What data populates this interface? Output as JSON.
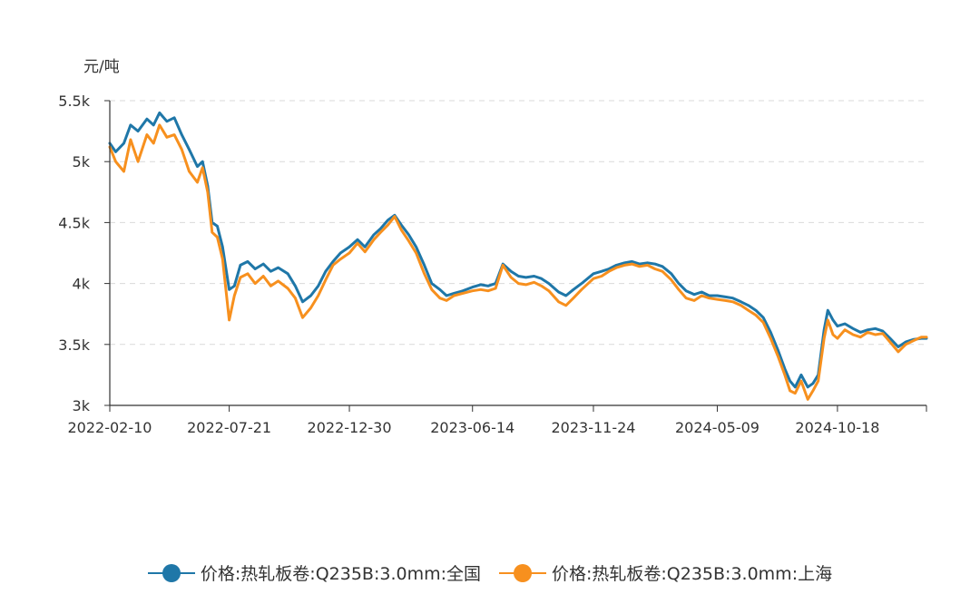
{
  "chart_data": {
    "type": "line",
    "title": "",
    "ylabel": "元/吨",
    "xlabel": "",
    "ylim": [
      3000,
      5500
    ],
    "yticks": [
      3000,
      3500,
      4000,
      4500,
      5000,
      5500
    ],
    "ytick_labels": [
      "3k",
      "3.5k",
      "4k",
      "4.5k",
      "5k",
      "5.5k"
    ],
    "xlim": [
      "2022-02-10",
      "2025-02-15"
    ],
    "xtick_labels": [
      "2022-02-10",
      "2022-07-21",
      "2022-12-30",
      "2023-06-14",
      "2023-11-24",
      "2024-05-09",
      "2024-10-18"
    ],
    "grid": "horizontal dashed",
    "legend_position": "bottom",
    "series": [
      {
        "name": "价格:热轧板卷:Q235B:3.0mm:全国",
        "color": "#1f77a8",
        "points": [
          [
            "2022-02-10",
            5150
          ],
          [
            "2022-02-18",
            5080
          ],
          [
            "2022-03-01",
            5150
          ],
          [
            "2022-03-10",
            5300
          ],
          [
            "2022-03-20",
            5250
          ],
          [
            "2022-04-01",
            5350
          ],
          [
            "2022-04-10",
            5300
          ],
          [
            "2022-04-18",
            5400
          ],
          [
            "2022-04-28",
            5330
          ],
          [
            "2022-05-08",
            5360
          ],
          [
            "2022-05-18",
            5220
          ],
          [
            "2022-05-28",
            5100
          ],
          [
            "2022-06-08",
            4960
          ],
          [
            "2022-06-15",
            5000
          ],
          [
            "2022-06-22",
            4800
          ],
          [
            "2022-06-28",
            4500
          ],
          [
            "2022-07-05",
            4470
          ],
          [
            "2022-07-12",
            4300
          ],
          [
            "2022-07-21",
            3950
          ],
          [
            "2022-07-28",
            3980
          ],
          [
            "2022-08-05",
            4150
          ],
          [
            "2022-08-15",
            4180
          ],
          [
            "2022-08-25",
            4120
          ],
          [
            "2022-09-05",
            4160
          ],
          [
            "2022-09-15",
            4100
          ],
          [
            "2022-09-25",
            4130
          ],
          [
            "2022-10-08",
            4080
          ],
          [
            "2022-10-18",
            3980
          ],
          [
            "2022-10-28",
            3850
          ],
          [
            "2022-11-08",
            3900
          ],
          [
            "2022-11-18",
            3980
          ],
          [
            "2022-11-28",
            4100
          ],
          [
            "2022-12-08",
            4180
          ],
          [
            "2022-12-18",
            4250
          ],
          [
            "2022-12-30",
            4300
          ],
          [
            "2023-01-10",
            4360
          ],
          [
            "2023-01-20",
            4300
          ],
          [
            "2023-02-01",
            4400
          ],
          [
            "2023-02-10",
            4450
          ],
          [
            "2023-02-20",
            4520
          ],
          [
            "2023-03-01",
            4560
          ],
          [
            "2023-03-10",
            4480
          ],
          [
            "2023-03-20",
            4400
          ],
          [
            "2023-03-30",
            4300
          ],
          [
            "2023-04-10",
            4150
          ],
          [
            "2023-04-20",
            4000
          ],
          [
            "2023-05-01",
            3950
          ],
          [
            "2023-05-10",
            3900
          ],
          [
            "2023-05-20",
            3920
          ],
          [
            "2023-06-01",
            3940
          ],
          [
            "2023-06-14",
            3970
          ],
          [
            "2023-06-25",
            3990
          ],
          [
            "2023-07-05",
            3980
          ],
          [
            "2023-07-15",
            4000
          ],
          [
            "2023-07-25",
            4160
          ],
          [
            "2023-08-05",
            4100
          ],
          [
            "2023-08-15",
            4060
          ],
          [
            "2023-08-25",
            4050
          ],
          [
            "2023-09-05",
            4060
          ],
          [
            "2023-09-15",
            4040
          ],
          [
            "2023-09-25",
            4000
          ],
          [
            "2023-10-08",
            3930
          ],
          [
            "2023-10-18",
            3900
          ],
          [
            "2023-10-28",
            3950
          ],
          [
            "2023-11-08",
            4000
          ],
          [
            "2023-11-24",
            4080
          ],
          [
            "2023-12-05",
            4100
          ],
          [
            "2023-12-15",
            4120
          ],
          [
            "2023-12-25",
            4150
          ],
          [
            "2024-01-05",
            4170
          ],
          [
            "2024-01-15",
            4180
          ],
          [
            "2024-01-25",
            4160
          ],
          [
            "2024-02-05",
            4170
          ],
          [
            "2024-02-15",
            4160
          ],
          [
            "2024-02-25",
            4140
          ],
          [
            "2024-03-08",
            4080
          ],
          [
            "2024-03-18",
            4000
          ],
          [
            "2024-03-28",
            3940
          ],
          [
            "2024-04-08",
            3910
          ],
          [
            "2024-04-18",
            3930
          ],
          [
            "2024-04-28",
            3900
          ],
          [
            "2024-05-09",
            3900
          ],
          [
            "2024-05-20",
            3890
          ],
          [
            "2024-05-30",
            3880
          ],
          [
            "2024-06-10",
            3850
          ],
          [
            "2024-06-20",
            3820
          ],
          [
            "2024-06-30",
            3780
          ],
          [
            "2024-07-10",
            3720
          ],
          [
            "2024-07-20",
            3600
          ],
          [
            "2024-07-30",
            3450
          ],
          [
            "2024-08-08",
            3300
          ],
          [
            "2024-08-15",
            3200
          ],
          [
            "2024-08-22",
            3150
          ],
          [
            "2024-08-30",
            3250
          ],
          [
            "2024-09-08",
            3150
          ],
          [
            "2024-09-15",
            3180
          ],
          [
            "2024-09-22",
            3250
          ],
          [
            "2024-09-30",
            3620
          ],
          [
            "2024-10-05",
            3780
          ],
          [
            "2024-10-12",
            3700
          ],
          [
            "2024-10-18",
            3650
          ],
          [
            "2024-10-28",
            3670
          ],
          [
            "2024-11-08",
            3630
          ],
          [
            "2024-11-18",
            3600
          ],
          [
            "2024-11-28",
            3620
          ],
          [
            "2024-12-08",
            3630
          ],
          [
            "2024-12-18",
            3610
          ],
          [
            "2024-12-28",
            3550
          ],
          [
            "2025-01-08",
            3480
          ],
          [
            "2025-01-18",
            3520
          ],
          [
            "2025-01-28",
            3540
          ],
          [
            "2025-02-08",
            3550
          ],
          [
            "2025-02-15",
            3550
          ]
        ]
      },
      {
        "name": "价格:热轧板卷:Q235B:3.0mm:上海",
        "color": "#f7901e",
        "points": [
          [
            "2022-02-10",
            5120
          ],
          [
            "2022-02-18",
            5000
          ],
          [
            "2022-03-01",
            4920
          ],
          [
            "2022-03-10",
            5180
          ],
          [
            "2022-03-20",
            5000
          ],
          [
            "2022-04-01",
            5220
          ],
          [
            "2022-04-10",
            5150
          ],
          [
            "2022-04-18",
            5300
          ],
          [
            "2022-04-28",
            5200
          ],
          [
            "2022-05-08",
            5220
          ],
          [
            "2022-05-18",
            5100
          ],
          [
            "2022-05-28",
            4920
          ],
          [
            "2022-06-08",
            4830
          ],
          [
            "2022-06-15",
            4950
          ],
          [
            "2022-06-22",
            4750
          ],
          [
            "2022-06-28",
            4420
          ],
          [
            "2022-07-05",
            4380
          ],
          [
            "2022-07-12",
            4200
          ],
          [
            "2022-07-21",
            3700
          ],
          [
            "2022-07-28",
            3900
          ],
          [
            "2022-08-05",
            4050
          ],
          [
            "2022-08-15",
            4080
          ],
          [
            "2022-08-25",
            4000
          ],
          [
            "2022-09-05",
            4060
          ],
          [
            "2022-09-15",
            3980
          ],
          [
            "2022-09-25",
            4020
          ],
          [
            "2022-10-08",
            3960
          ],
          [
            "2022-10-18",
            3880
          ],
          [
            "2022-10-28",
            3720
          ],
          [
            "2022-11-08",
            3800
          ],
          [
            "2022-11-18",
            3900
          ],
          [
            "2022-11-28",
            4030
          ],
          [
            "2022-12-08",
            4150
          ],
          [
            "2022-12-18",
            4200
          ],
          [
            "2022-12-30",
            4250
          ],
          [
            "2023-01-10",
            4330
          ],
          [
            "2023-01-20",
            4260
          ],
          [
            "2023-02-01",
            4360
          ],
          [
            "2023-02-10",
            4420
          ],
          [
            "2023-02-20",
            4480
          ],
          [
            "2023-03-01",
            4550
          ],
          [
            "2023-03-10",
            4440
          ],
          [
            "2023-03-20",
            4350
          ],
          [
            "2023-03-30",
            4250
          ],
          [
            "2023-04-10",
            4080
          ],
          [
            "2023-04-20",
            3950
          ],
          [
            "2023-05-01",
            3880
          ],
          [
            "2023-05-10",
            3860
          ],
          [
            "2023-05-20",
            3900
          ],
          [
            "2023-06-01",
            3920
          ],
          [
            "2023-06-14",
            3940
          ],
          [
            "2023-06-25",
            3950
          ],
          [
            "2023-07-05",
            3940
          ],
          [
            "2023-07-15",
            3960
          ],
          [
            "2023-07-25",
            4150
          ],
          [
            "2023-08-05",
            4050
          ],
          [
            "2023-08-15",
            4000
          ],
          [
            "2023-08-25",
            3990
          ],
          [
            "2023-09-05",
            4010
          ],
          [
            "2023-09-15",
            3980
          ],
          [
            "2023-09-25",
            3940
          ],
          [
            "2023-10-08",
            3850
          ],
          [
            "2023-10-18",
            3820
          ],
          [
            "2023-10-28",
            3880
          ],
          [
            "2023-11-08",
            3950
          ],
          [
            "2023-11-24",
            4040
          ],
          [
            "2023-12-05",
            4060
          ],
          [
            "2023-12-15",
            4100
          ],
          [
            "2023-12-25",
            4130
          ],
          [
            "2024-01-05",
            4150
          ],
          [
            "2024-01-15",
            4160
          ],
          [
            "2024-01-25",
            4140
          ],
          [
            "2024-02-05",
            4150
          ],
          [
            "2024-02-15",
            4120
          ],
          [
            "2024-02-25",
            4100
          ],
          [
            "2024-03-08",
            4030
          ],
          [
            "2024-03-18",
            3950
          ],
          [
            "2024-03-28",
            3880
          ],
          [
            "2024-04-08",
            3860
          ],
          [
            "2024-04-18",
            3900
          ],
          [
            "2024-04-28",
            3880
          ],
          [
            "2024-05-09",
            3870
          ],
          [
            "2024-05-20",
            3860
          ],
          [
            "2024-05-30",
            3850
          ],
          [
            "2024-06-10",
            3820
          ],
          [
            "2024-06-20",
            3780
          ],
          [
            "2024-06-30",
            3740
          ],
          [
            "2024-07-10",
            3680
          ],
          [
            "2024-07-20",
            3550
          ],
          [
            "2024-07-30",
            3400
          ],
          [
            "2024-08-08",
            3250
          ],
          [
            "2024-08-15",
            3120
          ],
          [
            "2024-08-22",
            3100
          ],
          [
            "2024-08-30",
            3200
          ],
          [
            "2024-09-08",
            3050
          ],
          [
            "2024-09-15",
            3120
          ],
          [
            "2024-09-22",
            3200
          ],
          [
            "2024-09-30",
            3550
          ],
          [
            "2024-10-05",
            3700
          ],
          [
            "2024-10-12",
            3580
          ],
          [
            "2024-10-18",
            3550
          ],
          [
            "2024-10-28",
            3620
          ],
          [
            "2024-11-08",
            3580
          ],
          [
            "2024-11-18",
            3560
          ],
          [
            "2024-11-28",
            3600
          ],
          [
            "2024-12-08",
            3580
          ],
          [
            "2024-12-18",
            3590
          ],
          [
            "2024-12-28",
            3520
          ],
          [
            "2025-01-08",
            3440
          ],
          [
            "2025-01-18",
            3500
          ],
          [
            "2025-01-28",
            3530
          ],
          [
            "2025-02-08",
            3560
          ],
          [
            "2025-02-15",
            3560
          ]
        ]
      }
    ]
  }
}
